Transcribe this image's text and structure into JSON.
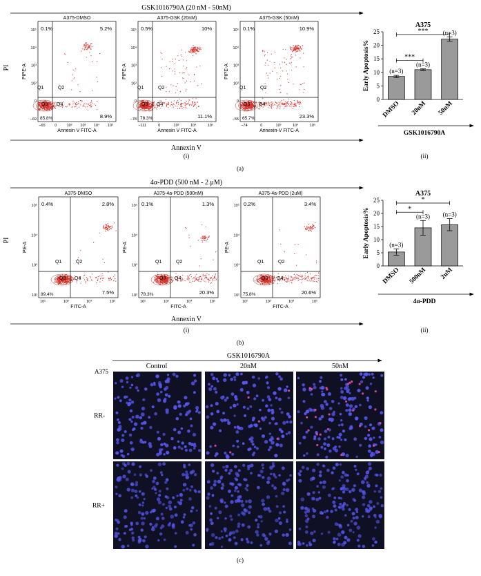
{
  "panel_a": {
    "header": "GSK1016790A (20 nM - 50nM)",
    "flow": [
      {
        "title": "A375-DMSO",
        "ylabel": "PIPE-A",
        "xlabel": "Annexin V FITC-A",
        "q_ul": "0.1%",
        "q_ur": "5.2%",
        "q_lr": "8.9%",
        "q_ll": "85.8%",
        "yticks": [
          "10⁵",
          "10⁴",
          "10³",
          "10²",
          "0",
          "−69"
        ],
        "xticks": [
          "−65",
          "0",
          "10²",
          "10³",
          "10⁴",
          "10⁵"
        ]
      },
      {
        "title": "A375-GSK (20nM)",
        "ylabel": "PIPE-A",
        "xlabel": "Annexin V FITC-A",
        "q_ul": "0.5%",
        "q_ur": "10%",
        "q_lr": "11.1%",
        "q_ll": "78.3%",
        "yticks": [
          "10⁵",
          "10⁴",
          "10³",
          "10²",
          "0",
          "−78"
        ],
        "xticks": [
          "−111",
          "0",
          "10³",
          "10⁴",
          "10⁵"
        ]
      },
      {
        "title": "A375-GSK (50nM)",
        "ylabel": "PIPE-A",
        "xlabel": "Annexin-V FITC-A",
        "q_ul": "0.1%",
        "q_ur": "10.9%",
        "q_lr": "23.3%",
        "q_ll": "65.7%",
        "yticks": [
          "10⁵",
          "10⁴",
          "10³",
          "10²",
          "0",
          "−55"
        ],
        "xticks": [
          "−74",
          "0",
          "10³",
          "10⁴",
          "10⁵"
        ]
      }
    ],
    "y_axis_label": "PI",
    "x_axis_label": "Annexin V",
    "sub_i": "(i)",
    "sub_ii": "(ii)",
    "label": "(a)"
  },
  "panel_b": {
    "header": "4α-PDD (500 nM - 2 μM)",
    "flow": [
      {
        "title": "A375-DMSO",
        "ylabel": "PE-A",
        "xlabel": "FITC-A",
        "q_ul": "0.4%",
        "q_ur": "2.8%",
        "q_lr": "7.5%",
        "q_ll": "89.4%",
        "yticks": [
          "10⁵",
          "10⁴",
          "10³",
          "10²"
        ],
        "xticks": [
          "10²",
          "10³",
          "10⁴",
          "10⁵"
        ]
      },
      {
        "title": "A375-4a-PDD (500nM)",
        "ylabel": "PE-A",
        "xlabel": "FITC-A",
        "q_ul": "0.1%",
        "q_ur": "1.3%",
        "q_lr": "20.3%",
        "q_ll": "78.3%",
        "yticks": [
          "10⁵",
          "10⁴",
          "10³",
          "10²"
        ],
        "xticks": [
          "10²",
          "10³",
          "10⁴",
          "10⁵"
        ]
      },
      {
        "title": "A375-4a-PDD (2uM)",
        "ylabel": "PE-A",
        "xlabel": "FITC-A",
        "q_ul": "0.2%",
        "q_ur": "3.4%",
        "q_lr": "20.6%",
        "q_ll": "75.8%",
        "yticks": [
          "10⁵",
          "10⁴",
          "10³",
          "10²"
        ],
        "xticks": [
          "10²",
          "10³",
          "10⁴",
          "10⁵"
        ]
      }
    ],
    "y_axis_label": "PI",
    "x_axis_label": "Annexin V",
    "sub_i": "(i)",
    "sub_ii": "(ii)",
    "label": "(b)"
  },
  "panel_c": {
    "header": "GSK1016790A",
    "cell_line": "A375",
    "columns": [
      "Control",
      "20nM",
      "50nM"
    ],
    "rows": [
      "RR-",
      "RR+"
    ],
    "label": "(c)"
  },
  "chart_data": [
    {
      "type": "bar",
      "title": "A375",
      "ylabel": "Early Apoptosis%",
      "xlabel": "GSK1016790A",
      "categories": [
        "DMSO",
        "20nM",
        "50nM"
      ],
      "values": [
        8.5,
        11.0,
        22.3
      ],
      "errors": [
        0.4,
        0.3,
        0.8
      ],
      "n_labels": [
        "(n=3)",
        "(n=3)",
        "(n=3)"
      ],
      "ylim": [
        0,
        25
      ],
      "yticks": [
        0,
        5,
        10,
        15,
        20,
        25
      ],
      "significance": [
        {
          "from": 0,
          "to": 1,
          "label": "***"
        },
        {
          "from": 0,
          "to": 2,
          "label": "***"
        }
      ],
      "bar_color": "#9a9a9a"
    },
    {
      "type": "bar",
      "title": "A375",
      "ylabel": "Early Apoptosis%",
      "xlabel": "4α-PDD",
      "categories": [
        "DMSO",
        "500nM",
        "2uM"
      ],
      "values": [
        5.3,
        14.5,
        15.7
      ],
      "errors": [
        1.2,
        2.8,
        2.3
      ],
      "n_labels": [
        "(n=3)",
        "(n=3)",
        "(n=3)"
      ],
      "ylim": [
        0,
        25
      ],
      "yticks": [
        0,
        5,
        10,
        15,
        20,
        25
      ],
      "significance": [
        {
          "from": 0,
          "to": 1,
          "label": "*"
        },
        {
          "from": 0,
          "to": 2,
          "label": "*"
        }
      ],
      "bar_color": "#9a9a9a"
    }
  ]
}
